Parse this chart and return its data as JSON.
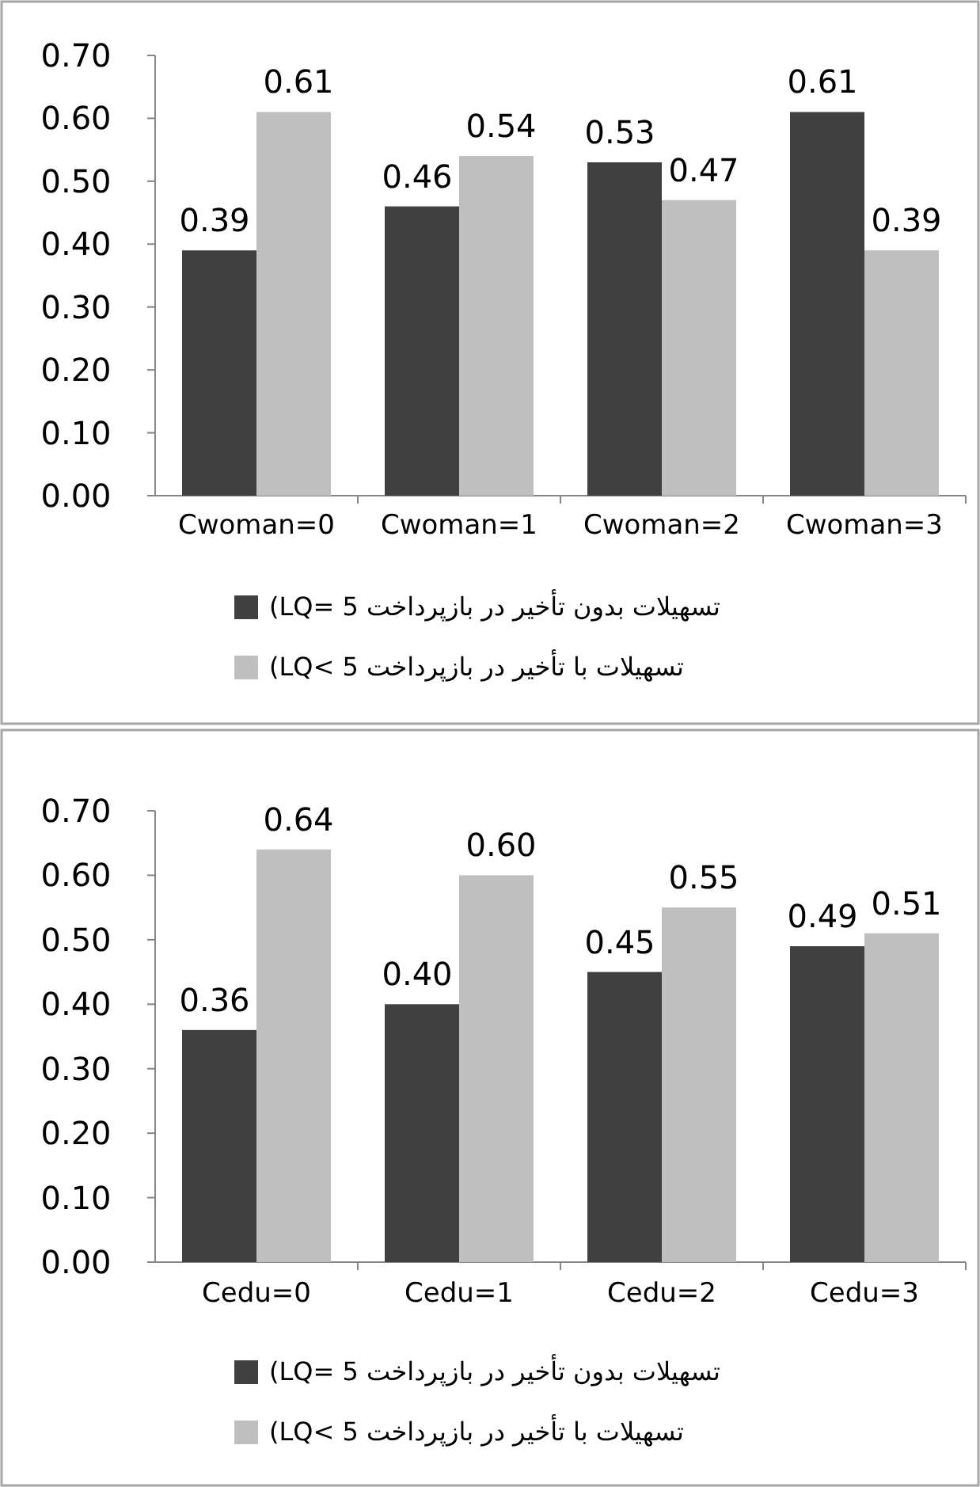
{
  "chart_data": [
    {
      "type": "bar",
      "categories": [
        "Cwoman=0",
        "Cwoman=1",
        "Cwoman=2",
        "Cwoman=3"
      ],
      "ylim": [
        0,
        0.7
      ],
      "yticks": [
        {
          "value": 0,
          "label": "0.00"
        },
        {
          "value": 0.1,
          "label": "0.10"
        },
        {
          "value": 0.2,
          "label": "0.20"
        },
        {
          "value": 0.3,
          "label": "0.30"
        },
        {
          "value": 0.4,
          "label": "0.40"
        },
        {
          "value": 0.5,
          "label": "0.50"
        },
        {
          "value": 0.6,
          "label": "0.60"
        },
        {
          "value": 0.7,
          "label": "0.70"
        }
      ],
      "legend": "bottom",
      "grid": false,
      "series": [
        {
          "name": "(LQ= 5 تسهیلات بدون تأخیر در بازپرداخت",
          "color": "#404040",
          "values": [
            0.39,
            0.46,
            0.53,
            0.61
          ],
          "value_labels": [
            "0.39",
            "0.46",
            "0.53",
            "0.61"
          ]
        },
        {
          "name": "(LQ< 5 تسهیلات با تأخیر در بازپرداخت",
          "color": "#bfbfbf",
          "values": [
            0.61,
            0.54,
            0.47,
            0.39
          ],
          "value_labels": [
            "0.61",
            "0.54",
            "0.47",
            "0.39"
          ]
        }
      ]
    },
    {
      "type": "bar",
      "categories": [
        "Cedu=0",
        "Cedu=1",
        "Cedu=2",
        "Cedu=3"
      ],
      "ylim": [
        0,
        0.7
      ],
      "yticks": [
        {
          "value": 0,
          "label": "0.00"
        },
        {
          "value": 0.1,
          "label": "0.10"
        },
        {
          "value": 0.2,
          "label": "0.20"
        },
        {
          "value": 0.3,
          "label": "0.30"
        },
        {
          "value": 0.4,
          "label": "0.40"
        },
        {
          "value": 0.5,
          "label": "0.50"
        },
        {
          "value": 0.6,
          "label": "0.60"
        },
        {
          "value": 0.7,
          "label": "0.70"
        }
      ],
      "legend": "bottom",
      "grid": false,
      "series": [
        {
          "name": "(LQ= 5 تسهیلات بدون تأخیر در بازپرداخت",
          "color": "#404040",
          "values": [
            0.36,
            0.4,
            0.45,
            0.49
          ],
          "value_labels": [
            "0.36",
            "0.40",
            "0.45",
            "0.49"
          ]
        },
        {
          "name": "(LQ< 5 تسهیلات با تأخیر در بازپرداخت",
          "color": "#bfbfbf",
          "values": [
            0.64,
            0.6,
            0.55,
            0.51
          ],
          "value_labels": [
            "0.64",
            "0.60",
            "0.55",
            "0.51"
          ]
        }
      ]
    }
  ]
}
